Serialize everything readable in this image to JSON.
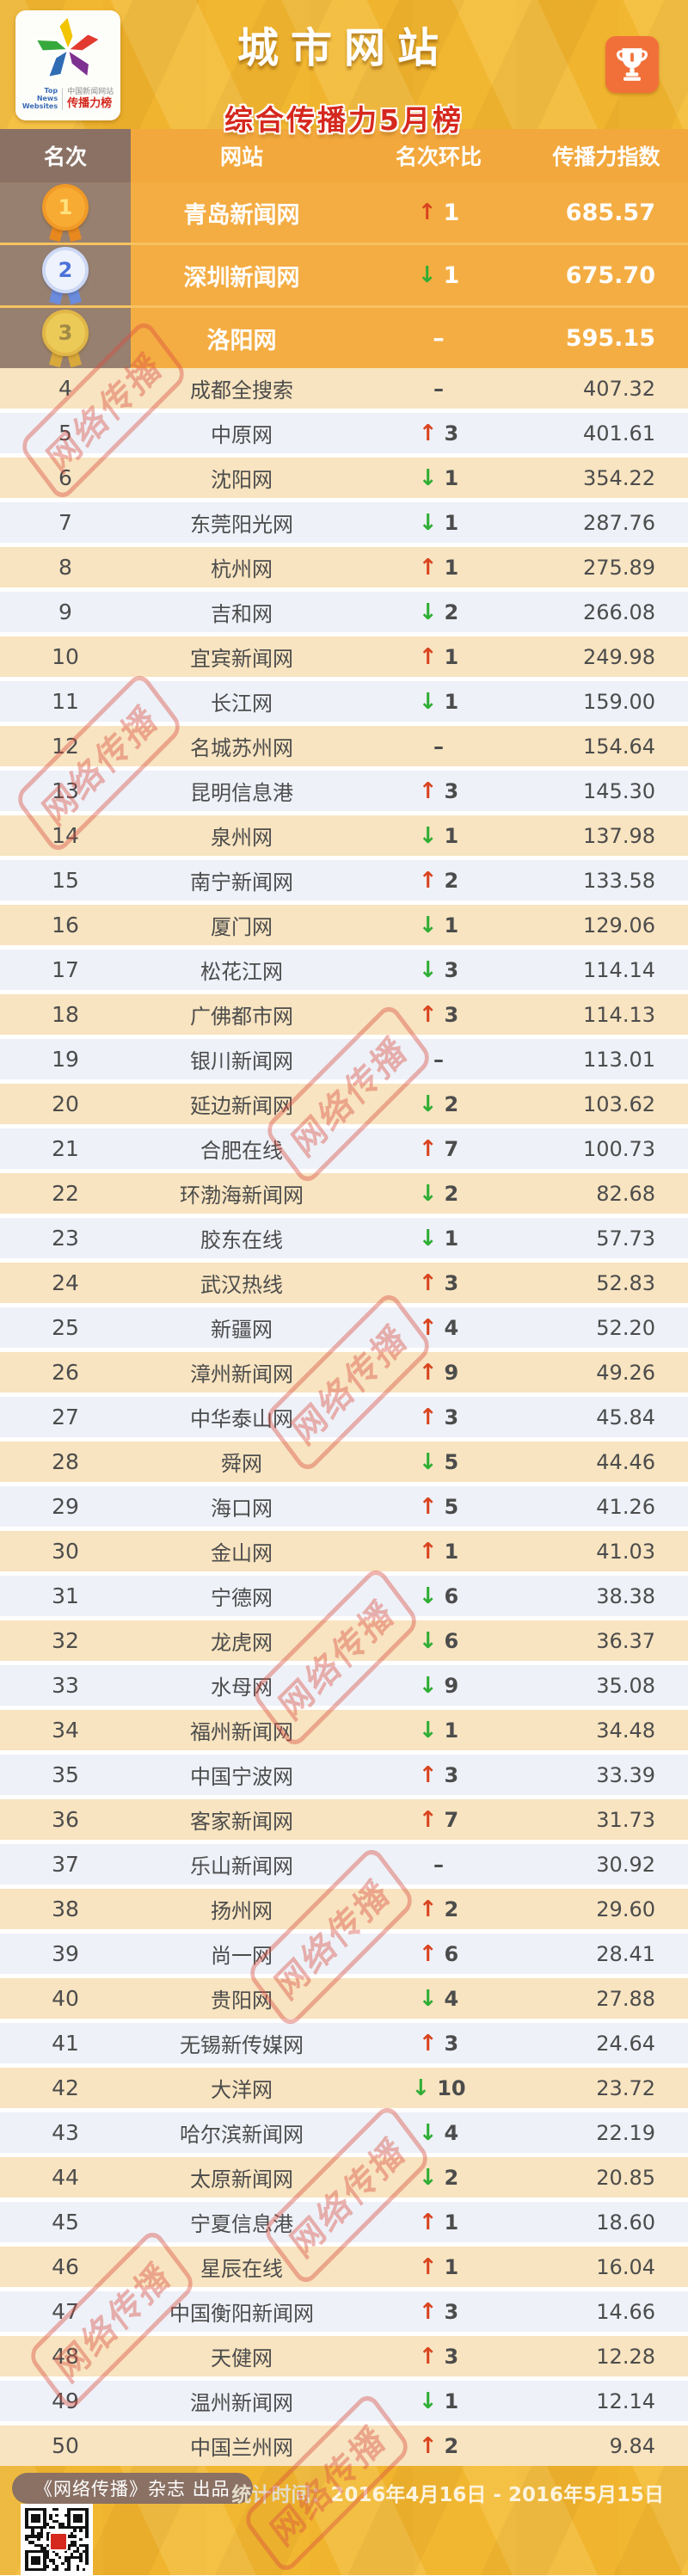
{
  "header": {
    "title": "城市网站",
    "subtitle": "综合传播力5月榜",
    "logo": {
      "en_line1": "Top",
      "en_line2": "News",
      "en_line3": "Websites",
      "cn_top": "中国新闻网站",
      "cn_bottom": "传播力榜"
    }
  },
  "icons": {
    "up_arrow": "↑",
    "down_arrow": "↓",
    "trophy": "trophy-icon",
    "medal_gold": "gold-medal-icon",
    "medal_silver": "silver-medal-icon",
    "medal_bronze": "bronze-medal-icon"
  },
  "colors": {
    "banner_gold": "#f0b42f",
    "header_brown": "#8a7164",
    "header_orange": "#f2a83c",
    "top3_orange": "#f4ad43",
    "row_cream": "#f8e4c0",
    "row_blue": "#eef1f8",
    "up_red": "#d9441f",
    "down_green": "#2fae35",
    "subtitle_red": "#d5281e"
  },
  "watermark": {
    "text": "网络传播"
  },
  "table": {
    "columns": [
      "名次",
      "网站",
      "名次环比",
      "传播力指数"
    ],
    "top3": [
      {
        "rank": "1",
        "site": "青岛新闻网",
        "dir": "up",
        "change": "1",
        "index": "685.57"
      },
      {
        "rank": "2",
        "site": "深圳新闻网",
        "dir": "down",
        "change": "1",
        "index": "675.70"
      },
      {
        "rank": "3",
        "site": "洛阳网",
        "dir": "none",
        "change": "–",
        "index": "595.15"
      }
    ],
    "rows": [
      {
        "rank": "4",
        "site": "成都全搜索",
        "dir": "none",
        "change": "–",
        "index": "407.32"
      },
      {
        "rank": "5",
        "site": "中原网",
        "dir": "up",
        "change": "3",
        "index": "401.61"
      },
      {
        "rank": "6",
        "site": "沈阳网",
        "dir": "down",
        "change": "1",
        "index": "354.22"
      },
      {
        "rank": "7",
        "site": "东莞阳光网",
        "dir": "down",
        "change": "1",
        "index": "287.76"
      },
      {
        "rank": "8",
        "site": "杭州网",
        "dir": "up",
        "change": "1",
        "index": "275.89"
      },
      {
        "rank": "9",
        "site": "吉和网",
        "dir": "down",
        "change": "2",
        "index": "266.08"
      },
      {
        "rank": "10",
        "site": "宜宾新闻网",
        "dir": "up",
        "change": "1",
        "index": "249.98"
      },
      {
        "rank": "11",
        "site": "长江网",
        "dir": "down",
        "change": "1",
        "index": "159.00"
      },
      {
        "rank": "12",
        "site": "名城苏州网",
        "dir": "none",
        "change": "–",
        "index": "154.64"
      },
      {
        "rank": "13",
        "site": "昆明信息港",
        "dir": "up",
        "change": "3",
        "index": "145.30"
      },
      {
        "rank": "14",
        "site": "泉州网",
        "dir": "down",
        "change": "1",
        "index": "137.98"
      },
      {
        "rank": "15",
        "site": "南宁新闻网",
        "dir": "up",
        "change": "2",
        "index": "133.58"
      },
      {
        "rank": "16",
        "site": "厦门网",
        "dir": "down",
        "change": "1",
        "index": "129.06"
      },
      {
        "rank": "17",
        "site": "松花江网",
        "dir": "down",
        "change": "3",
        "index": "114.14"
      },
      {
        "rank": "18",
        "site": "广佛都市网",
        "dir": "up",
        "change": "3",
        "index": "114.13"
      },
      {
        "rank": "19",
        "site": "银川新闻网",
        "dir": "none",
        "change": "–",
        "index": "113.01"
      },
      {
        "rank": "20",
        "site": "延边新闻网",
        "dir": "down",
        "change": "2",
        "index": "103.62"
      },
      {
        "rank": "21",
        "site": "合肥在线",
        "dir": "up",
        "change": "7",
        "index": "100.73"
      },
      {
        "rank": "22",
        "site": "环渤海新闻网",
        "dir": "down",
        "change": "2",
        "index": "82.68"
      },
      {
        "rank": "23",
        "site": "胶东在线",
        "dir": "down",
        "change": "1",
        "index": "57.73"
      },
      {
        "rank": "24",
        "site": "武汉热线",
        "dir": "up",
        "change": "3",
        "index": "52.83"
      },
      {
        "rank": "25",
        "site": "新疆网",
        "dir": "up",
        "change": "4",
        "index": "52.20"
      },
      {
        "rank": "26",
        "site": "漳州新闻网",
        "dir": "up",
        "change": "9",
        "index": "49.26"
      },
      {
        "rank": "27",
        "site": "中华泰山网",
        "dir": "up",
        "change": "3",
        "index": "45.84"
      },
      {
        "rank": "28",
        "site": "舜网",
        "dir": "down",
        "change": "5",
        "index": "44.46"
      },
      {
        "rank": "29",
        "site": "海口网",
        "dir": "up",
        "change": "5",
        "index": "41.26"
      },
      {
        "rank": "30",
        "site": "金山网",
        "dir": "up",
        "change": "1",
        "index": "41.03"
      },
      {
        "rank": "31",
        "site": "宁德网",
        "dir": "down",
        "change": "6",
        "index": "38.38"
      },
      {
        "rank": "32",
        "site": "龙虎网",
        "dir": "down",
        "change": "6",
        "index": "36.37"
      },
      {
        "rank": "33",
        "site": "水母网",
        "dir": "down",
        "change": "9",
        "index": "35.08"
      },
      {
        "rank": "34",
        "site": "福州新闻网",
        "dir": "down",
        "change": "1",
        "index": "34.48"
      },
      {
        "rank": "35",
        "site": "中国宁波网",
        "dir": "up",
        "change": "3",
        "index": "33.39"
      },
      {
        "rank": "36",
        "site": "客家新闻网",
        "dir": "up",
        "change": "7",
        "index": "31.73"
      },
      {
        "rank": "37",
        "site": "乐山新闻网",
        "dir": "none",
        "change": "–",
        "index": "30.92"
      },
      {
        "rank": "38",
        "site": "扬州网",
        "dir": "up",
        "change": "2",
        "index": "29.60"
      },
      {
        "rank": "39",
        "site": "尚一网",
        "dir": "up",
        "change": "6",
        "index": "28.41"
      },
      {
        "rank": "40",
        "site": "贵阳网",
        "dir": "down",
        "change": "4",
        "index": "27.88"
      },
      {
        "rank": "41",
        "site": "无锡新传媒网",
        "dir": "up",
        "change": "3",
        "index": "24.64"
      },
      {
        "rank": "42",
        "site": "大洋网",
        "dir": "down",
        "change": "10",
        "index": "23.72"
      },
      {
        "rank": "43",
        "site": "哈尔滨新闻网",
        "dir": "down",
        "change": "4",
        "index": "22.19"
      },
      {
        "rank": "44",
        "site": "太原新闻网",
        "dir": "down",
        "change": "2",
        "index": "20.85"
      },
      {
        "rank": "45",
        "site": "宁夏信息港",
        "dir": "up",
        "change": "1",
        "index": "18.60"
      },
      {
        "rank": "46",
        "site": "星辰在线",
        "dir": "up",
        "change": "1",
        "index": "16.04"
      },
      {
        "rank": "47",
        "site": "中国衡阳新闻网",
        "dir": "up",
        "change": "3",
        "index": "14.66"
      },
      {
        "rank": "48",
        "site": "天健网",
        "dir": "up",
        "change": "3",
        "index": "12.28"
      },
      {
        "rank": "49",
        "site": "温州新闻网",
        "dir": "down",
        "change": "1",
        "index": "12.14"
      },
      {
        "rank": "50",
        "site": "中国兰州网",
        "dir": "up",
        "change": "2",
        "index": "9.84"
      }
    ]
  },
  "footer": {
    "publisher": "《网络传播》杂志 出品",
    "stats_label": "统计时间：",
    "stats_value": "2016年4月16日 - 2016年5月15日"
  }
}
